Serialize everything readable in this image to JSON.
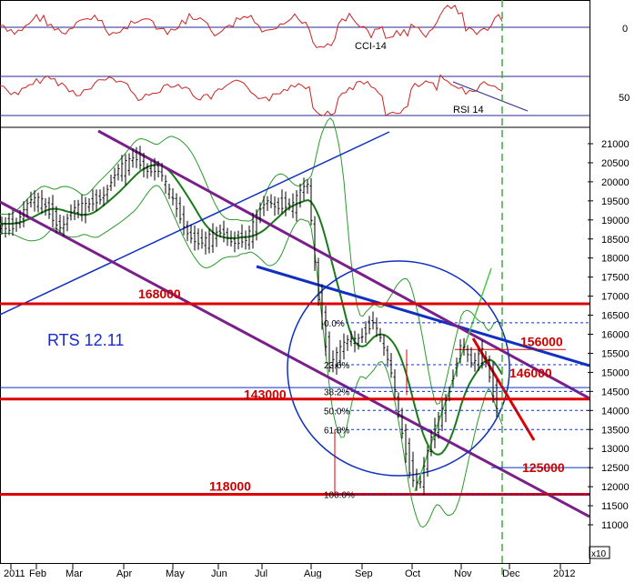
{
  "chart_data": {
    "type": "candlestick",
    "title": "RTS 12.11",
    "x_tick_labels": [
      "2011",
      "Feb",
      "Mar",
      "Apr",
      "May",
      "Jun",
      "Jul",
      "Aug",
      "Sep",
      "Oct",
      "Nov",
      "Dec",
      "2012"
    ],
    "y_tick_labels": [
      21000,
      20500,
      20000,
      19500,
      19000,
      18500,
      18000,
      17500,
      17000,
      16500,
      16000,
      15500,
      15000,
      14500,
      14000,
      13500,
      13000,
      12500,
      12000,
      11500,
      11000
    ],
    "ylim": [
      10800,
      21300
    ],
    "y_multiplier_label": "x10",
    "levels": [
      {
        "label": "168000",
        "value": 16800
      },
      {
        "label": "156000",
        "value": 15600
      },
      {
        "label": "146000",
        "value": 14600
      },
      {
        "label": "143000",
        "value": 14300
      },
      {
        "label": "125000",
        "value": 12500
      },
      {
        "label": "118000",
        "value": 11800
      }
    ],
    "fibonacci": [
      {
        "label": "0.0%",
        "value": 16300
      },
      {
        "label": "23.6%",
        "value": 15200
      },
      {
        "label": "38.2%",
        "value": 14500
      },
      {
        "label": "50.0%",
        "value": 14000
      },
      {
        "label": "61.8%",
        "value": 13500
      },
      {
        "label": "100.0%",
        "value": 11800
      }
    ],
    "close_series": [
      {
        "x": "2011-01-01",
        "y": 18900
      },
      {
        "x": "2011-01-20",
        "y": 19300
      },
      {
        "x": "2011-02-05",
        "y": 19500
      },
      {
        "x": "2011-02-20",
        "y": 18900
      },
      {
        "x": "2011-03-10",
        "y": 19400
      },
      {
        "x": "2011-03-25",
        "y": 20000
      },
      {
        "x": "2011-04-08",
        "y": 20700
      },
      {
        "x": "2011-04-22",
        "y": 20200
      },
      {
        "x": "2011-05-06",
        "y": 19100
      },
      {
        "x": "2011-05-20",
        "y": 18300
      },
      {
        "x": "2011-06-05",
        "y": 18700
      },
      {
        "x": "2011-06-20",
        "y": 18400
      },
      {
        "x": "2011-07-05",
        "y": 19600
      },
      {
        "x": "2011-07-20",
        "y": 19300
      },
      {
        "x": "2011-07-30",
        "y": 19900
      },
      {
        "x": "2011-08-05",
        "y": 17200
      },
      {
        "x": "2011-08-12",
        "y": 15200
      },
      {
        "x": "2011-08-25",
        "y": 15800
      },
      {
        "x": "2011-09-08",
        "y": 16400
      },
      {
        "x": "2011-09-20",
        "y": 14600
      },
      {
        "x": "2011-09-30",
        "y": 12400
      },
      {
        "x": "2011-10-06",
        "y": 12100
      },
      {
        "x": "2011-10-15",
        "y": 13400
      },
      {
        "x": "2011-10-25",
        "y": 14700
      },
      {
        "x": "2011-11-01",
        "y": 15900
      },
      {
        "x": "2011-11-08",
        "y": 15000
      },
      {
        "x": "2011-11-15",
        "y": 15600
      },
      {
        "x": "2011-11-22",
        "y": 14300
      },
      {
        "x": "2011-11-28",
        "y": 13900
      },
      {
        "x": "2011-12-02",
        "y": 14400
      }
    ],
    "indicators": [
      {
        "name": "CCI-14",
        "right_label": "0"
      },
      {
        "name": "RSI 14",
        "right_label": "50"
      }
    ],
    "colors": {
      "price": "#000000",
      "bollinger": "#2a9a2a",
      "moving_average": "#1a7a1a",
      "trend_blue": "#1030c0",
      "channel": "#7a1f8a",
      "levels": "#dd0000",
      "oscillator": "#cc2222",
      "indicator_band": "#2a2a90",
      "dec_marker": "#44aa44"
    }
  }
}
